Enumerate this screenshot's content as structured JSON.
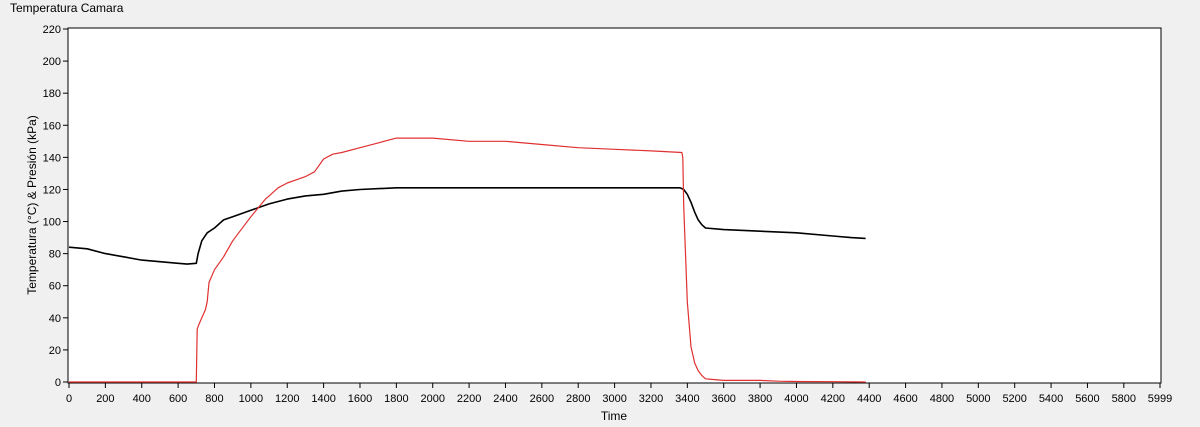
{
  "window": {
    "title": "Temperatura Camara"
  },
  "chart_data": {
    "type": "line",
    "title": "Temperatura Camara",
    "xlabel": "Time",
    "ylabel": "Temperatura (°C) & Presión (kPa)",
    "xlim": [
      0,
      5999
    ],
    "ylim": [
      0,
      220
    ],
    "x_ticks": [
      0,
      200,
      400,
      600,
      800,
      1000,
      1200,
      1400,
      1600,
      1800,
      2000,
      2200,
      2400,
      2600,
      2800,
      3000,
      3200,
      3400,
      3600,
      3800,
      4000,
      4200,
      4400,
      4600,
      4800,
      5000,
      5200,
      5400,
      5600,
      5800,
      5999
    ],
    "y_ticks": [
      0,
      20,
      40,
      60,
      80,
      100,
      120,
      140,
      160,
      180,
      200,
      220
    ],
    "grid": false,
    "series": [
      {
        "color": "#000000",
        "x": [
          0,
          100,
          200,
          300,
          400,
          500,
          600,
          650,
          700,
          710,
          730,
          760,
          800,
          850,
          900,
          1000,
          1100,
          1200,
          1300,
          1400,
          1500,
          1600,
          1800,
          2000,
          2200,
          2600,
          3000,
          3200,
          3300,
          3360,
          3380,
          3400,
          3420,
          3440,
          3460,
          3480,
          3500,
          3600,
          3800,
          4000,
          4200,
          4300,
          4380
        ],
        "y": [
          84,
          83,
          80,
          78,
          76,
          75,
          74,
          73.5,
          74,
          80,
          88,
          93,
          96,
          101,
          103,
          107,
          111,
          114,
          116,
          117,
          119,
          120,
          121,
          121,
          121,
          121,
          121,
          121,
          121,
          121,
          120,
          117,
          112,
          106,
          101,
          98,
          96,
          95,
          94,
          93,
          91,
          90,
          89.5
        ]
      },
      {
        "color": "#e03030",
        "x": [
          0,
          690,
          700,
          705,
          715,
          730,
          750,
          760,
          770,
          800,
          850,
          900,
          1000,
          1080,
          1100,
          1150,
          1200,
          1250,
          1300,
          1350,
          1400,
          1450,
          1500,
          1600,
          1700,
          1800,
          1900,
          2000,
          2200,
          2400,
          2600,
          2800,
          3000,
          3200,
          3370,
          3375,
          3380,
          3390,
          3400,
          3420,
          3440,
          3460,
          3480,
          3500,
          3550,
          3600,
          3700,
          3800,
          3900,
          4000,
          4200,
          4380
        ],
        "y": [
          0,
          0,
          0,
          33,
          36,
          40,
          45,
          50,
          62,
          70,
          78,
          88,
          103,
          114,
          116,
          121,
          124,
          126,
          128,
          131,
          139,
          142,
          143,
          146,
          149,
          152,
          152,
          152,
          150,
          150,
          148,
          146,
          145,
          144,
          143,
          140,
          110,
          80,
          50,
          22,
          12,
          7,
          4,
          2,
          1.5,
          1,
          1,
          1,
          0.5,
          0.3,
          0.2,
          0
        ]
      }
    ]
  }
}
